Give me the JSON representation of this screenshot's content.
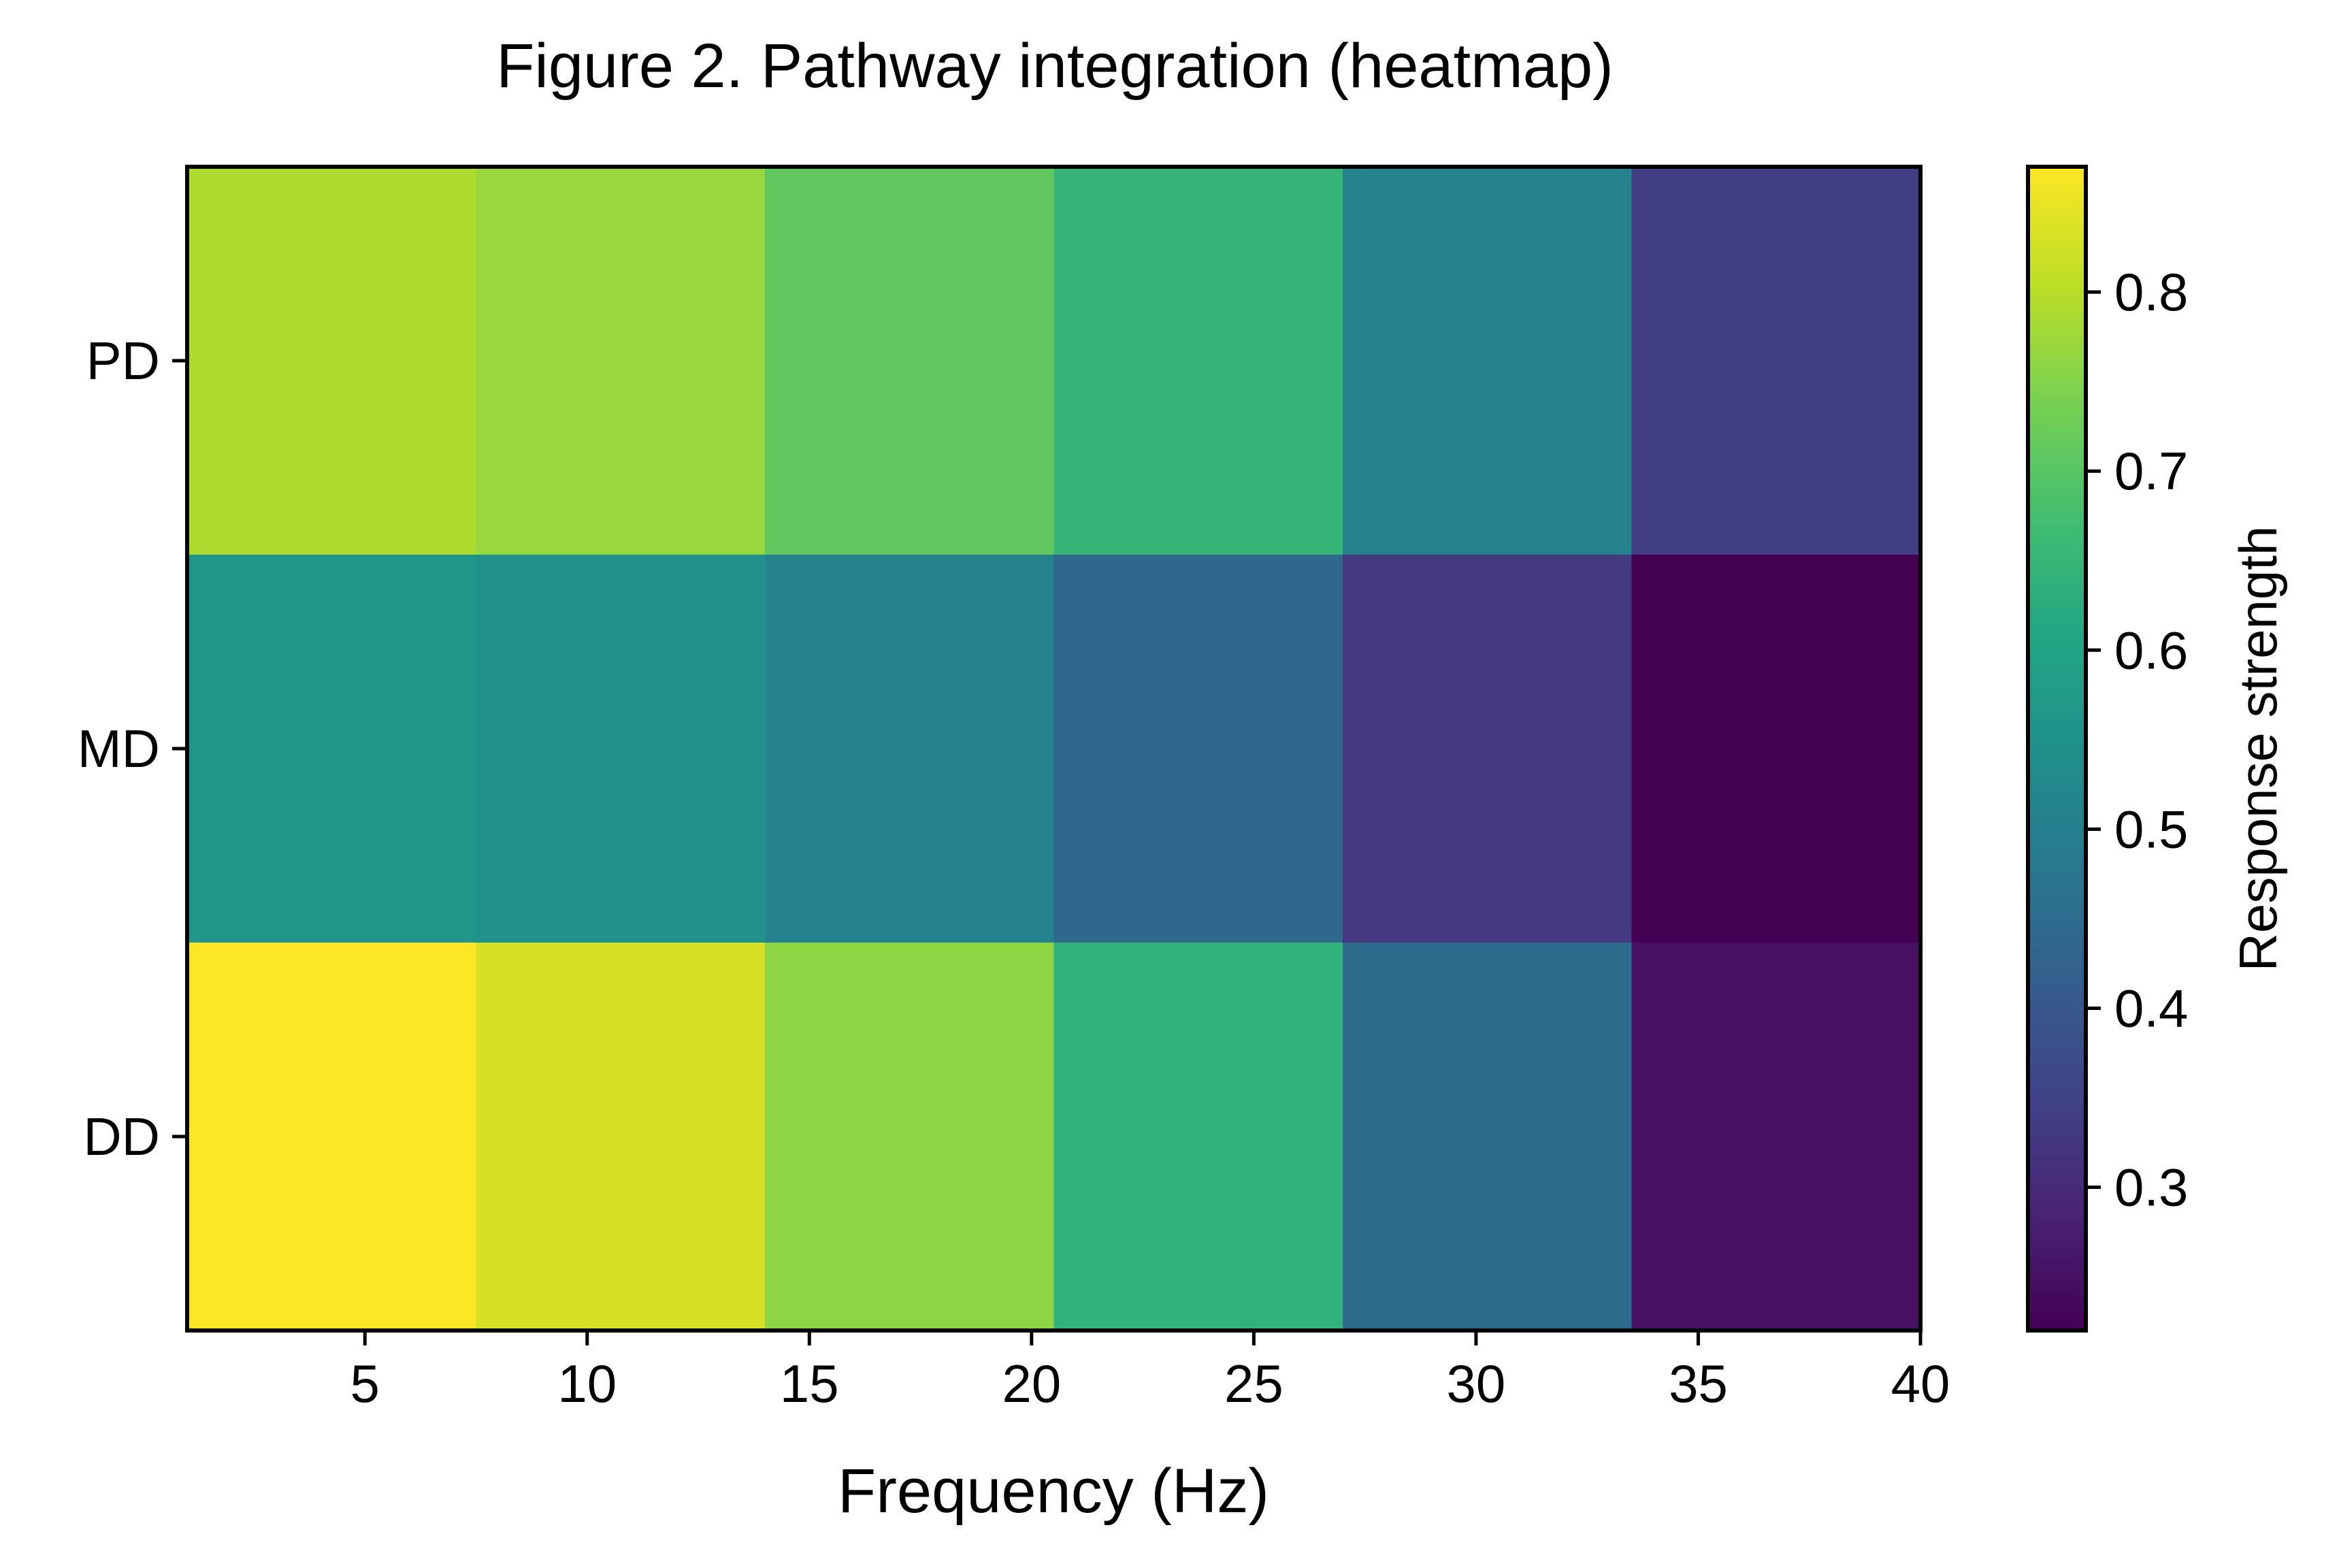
{
  "chart_data": {
    "type": "heatmap",
    "title": "Figure 2. Pathway integration (heatmap)",
    "xlabel": "Frequency (Hz)",
    "ylabel": "",
    "xlim": [
      1,
      40
    ],
    "xticks": [
      5,
      10,
      15,
      20,
      25,
      30,
      35,
      40
    ],
    "x_bin_edges": [
      1.0,
      7.5,
      14.0,
      20.5,
      27.0,
      33.5,
      40.0
    ],
    "rows": [
      "PD",
      "MD",
      "DD"
    ],
    "values": [
      [
        0.79,
        0.77,
        0.71,
        0.65,
        0.51,
        0.34
      ],
      [
        0.56,
        0.55,
        0.51,
        0.44,
        0.33,
        0.22
      ],
      [
        0.87,
        0.83,
        0.76,
        0.64,
        0.45,
        0.25
      ]
    ],
    "colorbar": {
      "label": "Response strength",
      "colormap": "viridis",
      "range": [
        0.22,
        0.87
      ],
      "ticks": [
        0.3,
        0.4,
        0.5,
        0.6,
        0.7,
        0.8
      ]
    },
    "grid": false,
    "legend": "none"
  }
}
